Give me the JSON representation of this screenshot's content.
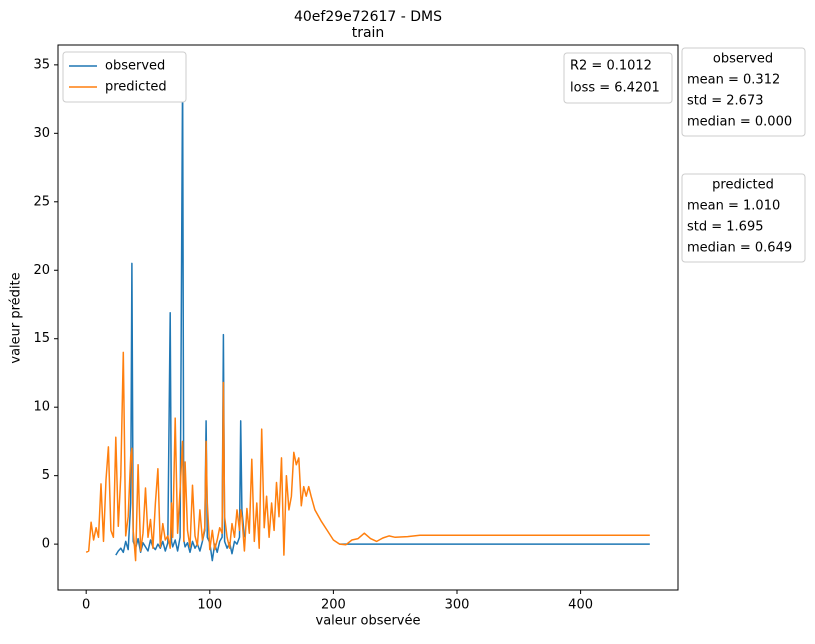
{
  "chart_data": {
    "type": "line",
    "title": "40ef29e72617 - DMS",
    "subtitle": "train",
    "x_label": "valeur observée",
    "y_label": "valeur prédite",
    "x": [
      0,
      2,
      4,
      6,
      8,
      10,
      12,
      14,
      16,
      18,
      20,
      22,
      24,
      26,
      28,
      30,
      32,
      34,
      36,
      37,
      38,
      40,
      42,
      44,
      46,
      48,
      50,
      52,
      54,
      56,
      58,
      60,
      62,
      64,
      66,
      68,
      69,
      70,
      72,
      74,
      76,
      78,
      79,
      80,
      82,
      84,
      86,
      88,
      90,
      92,
      94,
      96,
      97,
      98,
      100,
      102,
      104,
      106,
      108,
      110,
      111,
      112,
      114,
      116,
      118,
      120,
      122,
      124,
      125,
      126,
      128,
      130,
      132,
      134,
      136,
      138,
      140,
      142,
      144,
      146,
      148,
      150,
      152,
      154,
      156,
      158,
      160,
      162,
      164,
      166,
      168,
      170,
      172,
      174,
      176,
      178,
      180,
      182,
      185,
      190,
      195,
      200,
      205,
      210,
      215,
      220,
      225,
      230,
      235,
      240,
      245,
      250,
      260,
      270,
      300,
      350,
      400,
      456
    ],
    "series": [
      {
        "name": "observed",
        "color": "#1f77b4",
        "values": [
          null,
          null,
          null,
          null,
          null,
          null,
          null,
          null,
          null,
          null,
          null,
          null,
          -0.8,
          -0.5,
          -0.3,
          -0.6,
          0.2,
          -0.4,
          3.0,
          20.5,
          0.2,
          -0.3,
          0.4,
          -0.6,
          0.1,
          -0.2,
          -0.5,
          0.3,
          -0.2,
          -0.4,
          0.0,
          -0.3,
          0.2,
          -0.5,
          0.1,
          16.9,
          0.2,
          -0.2,
          0.3,
          -0.5,
          0.5,
          34.5,
          0.3,
          -0.2,
          0.1,
          -0.6,
          0.2,
          -0.3,
          0.0,
          -0.5,
          0.2,
          1.0,
          9.0,
          0.5,
          0.1,
          -1.2,
          0.0,
          -0.6,
          0.2,
          0.5,
          15.3,
          0.2,
          -0.3,
          0.1,
          -0.7,
          0.2,
          0.0,
          0.5,
          9.0,
          2.5,
          0.5,
          null,
          null,
          null,
          null,
          null,
          null,
          null,
          null,
          null,
          null,
          null,
          null,
          null,
          null,
          null,
          null,
          null,
          null,
          null,
          null,
          null,
          null,
          null,
          null,
          null,
          null,
          null,
          null,
          null,
          null,
          null,
          0,
          0,
          0,
          0,
          0,
          0,
          0,
          0,
          0,
          0,
          0,
          0,
          0,
          0,
          0,
          0
        ]
      },
      {
        "name": "predicted",
        "color": "#ff7f0e",
        "values": [
          -0.6,
          -0.5,
          1.6,
          0.3,
          1.2,
          0.5,
          4.4,
          0.2,
          4.7,
          7.1,
          1.0,
          0.5,
          7.8,
          1.3,
          5.0,
          14.0,
          0.6,
          2.0,
          6.4,
          7.0,
          1.0,
          -1.2,
          5.8,
          -0.5,
          0.8,
          4.1,
          0.5,
          1.8,
          -0.3,
          3.0,
          5.5,
          -0.2,
          1.5,
          0.3,
          0.6,
          -0.3,
          3.0,
          0.5,
          9.2,
          0.8,
          4.0,
          7.5,
          0.2,
          6.0,
          1.0,
          -0.2,
          4.3,
          0.6,
          -0.1,
          2.5,
          0.3,
          1.2,
          7.5,
          3.0,
          -0.4,
          1.0,
          -0.4,
          0.3,
          1.2,
          0.8,
          11.8,
          2.0,
          0.5,
          -0.3,
          1.5,
          0.5,
          2.5,
          1.0,
          2.5,
          2.0,
          -0.5,
          2.6,
          0.8,
          6.2,
          0.2,
          3.0,
          -0.3,
          8.4,
          1.2,
          3.5,
          0.5,
          3.0,
          1.0,
          4.5,
          2.0,
          6.3,
          -0.8,
          5.0,
          2.5,
          3.5,
          6.7,
          5.8,
          6.3,
          2.8,
          4.2,
          3.5,
          4.2,
          3.5,
          2.5,
          1.7,
          1.0,
          0.3,
          0.0,
          -0.05,
          0.3,
          0.4,
          0.8,
          0.4,
          0.2,
          0.45,
          0.6,
          0.5,
          0.55,
          0.65,
          0.65,
          0.65,
          0.65,
          0.65
        ]
      }
    ],
    "xlim": [
      -22.8,
      478.8
    ],
    "xticks": [
      0,
      100,
      200,
      300,
      400
    ],
    "ylim": [
      -3.35,
      36.45
    ],
    "yticks": [
      0,
      5,
      10,
      15,
      20,
      25,
      30,
      35
    ],
    "grid": false,
    "legend": "upper left",
    "annotations": [
      "R2 = 0.1012",
      "loss = 6.4201"
    ],
    "stats_boxes": [
      {
        "title": "observed",
        "lines": [
          "mean = 0.312",
          "std = 2.673",
          "median = 0.000"
        ]
      },
      {
        "title": "predicted",
        "lines": [
          "mean = 1.010",
          "std = 1.695",
          "median = 0.649"
        ]
      }
    ]
  }
}
